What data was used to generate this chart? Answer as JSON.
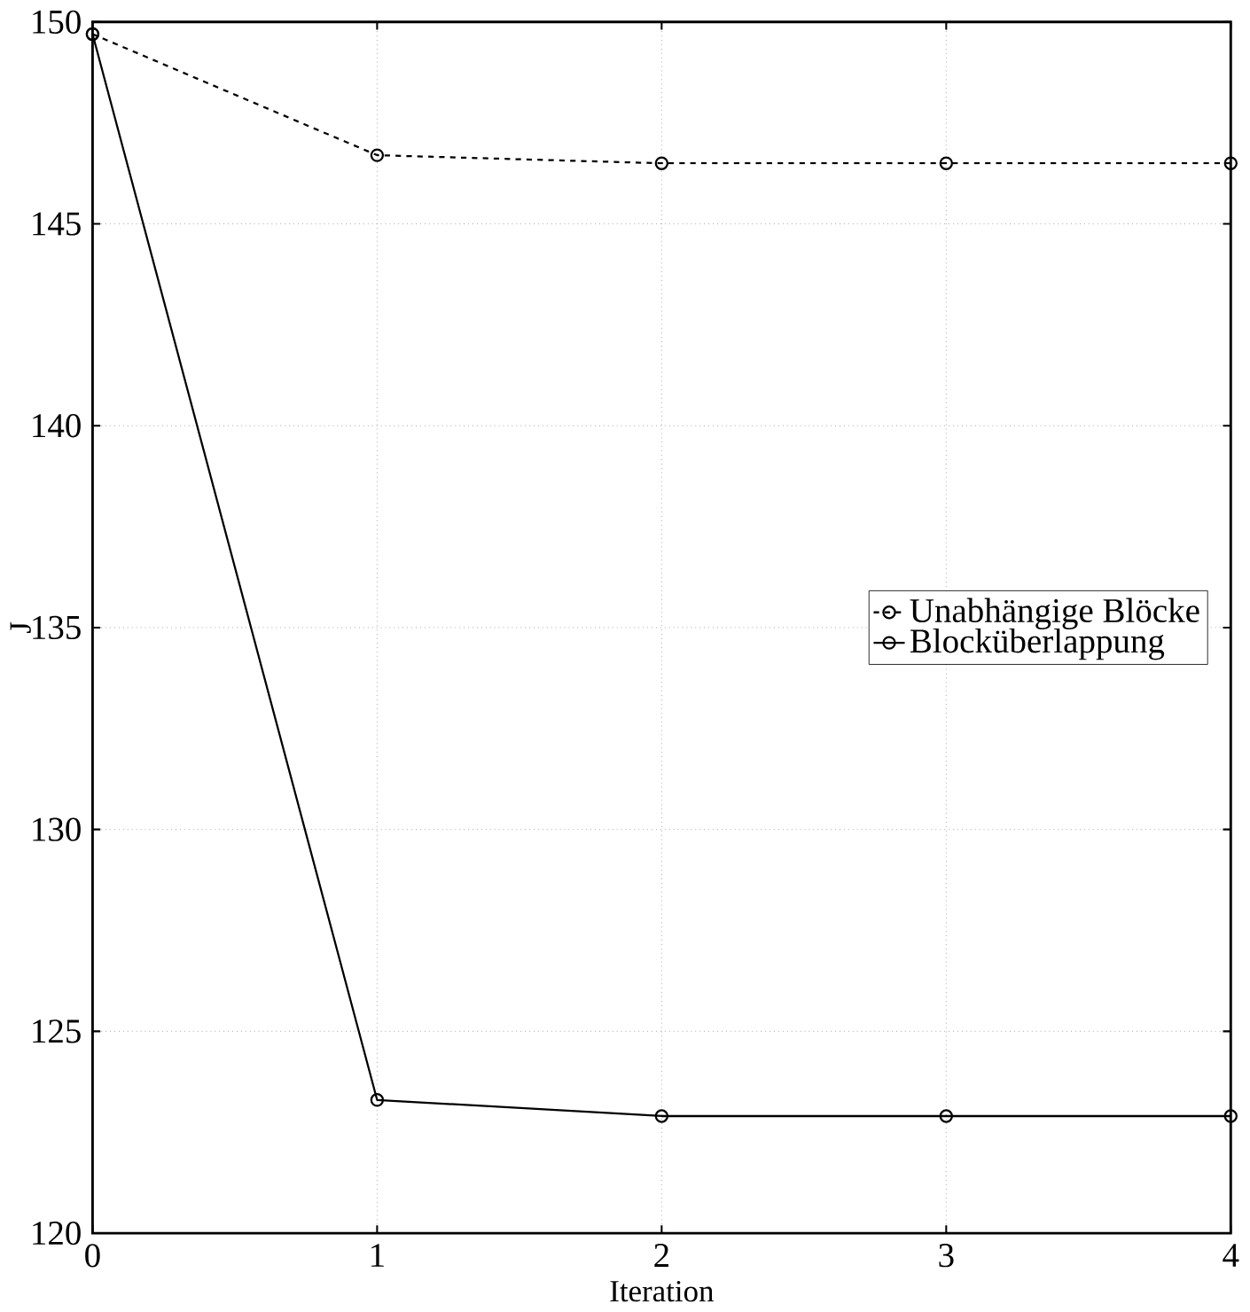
{
  "chart_data": {
    "type": "line",
    "xlabel": "Iteration",
    "ylabel": "J",
    "x": [
      0,
      1,
      2,
      3,
      4
    ],
    "series": [
      {
        "name": "Unabhängige Blöcke",
        "color": "#000000",
        "line_style": "dashed",
        "values": [
          149.7,
          146.7,
          146.5,
          146.5,
          146.5
        ]
      },
      {
        "name": "Blocküberlappung",
        "color": "#000000",
        "line_style": "solid",
        "values": [
          149.7,
          123.3,
          122.9,
          122.9,
          122.9
        ]
      }
    ],
    "xlim": [
      0,
      4
    ],
    "ylim": [
      120,
      150
    ],
    "xticks": [
      0,
      1,
      2,
      3,
      4
    ],
    "yticks": [
      120,
      125,
      130,
      135,
      140,
      145,
      150
    ],
    "grid": true,
    "legend": "right",
    "marker": "circle"
  }
}
